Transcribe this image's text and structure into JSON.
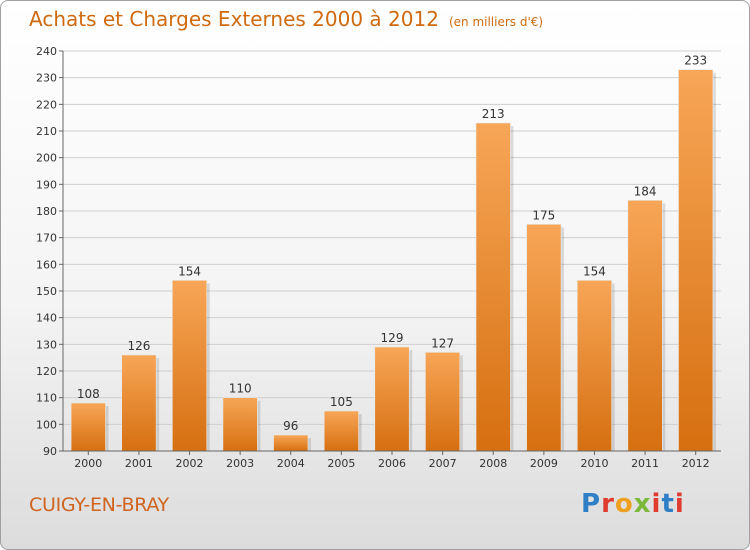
{
  "header": {
    "title": "Achats et Charges Externes 2000 à 2012",
    "unit": "(en milliers d'€)"
  },
  "footer": {
    "place": "CUIGY-EN-BRAY",
    "logo": [
      "P",
      "r",
      "o",
      "x",
      "i",
      "t",
      "i"
    ]
  },
  "colors": {
    "bar_top": "#f7a657",
    "bar_bottom": "#d66f10",
    "title": "#d06a10",
    "logo": [
      "#2f7fc6",
      "#e03b2f",
      "#f0a020",
      "#7cb83a",
      "#e03b2f",
      "#2f7fc6",
      "#e03b2f"
    ]
  },
  "chart_data": {
    "type": "bar",
    "title": "Achats et Charges Externes 2000 à 2012",
    "subtitle": "(en milliers d'€)",
    "xlabel": "",
    "ylabel": "",
    "categories": [
      "2000",
      "2001",
      "2002",
      "2003",
      "2004",
      "2005",
      "2006",
      "2007",
      "2008",
      "2009",
      "2010",
      "2011",
      "2012"
    ],
    "values": [
      108,
      126,
      154,
      110,
      96,
      105,
      129,
      127,
      213,
      175,
      154,
      184,
      233
    ],
    "ylim": [
      90,
      240
    ],
    "yticks": [
      90,
      100,
      110,
      120,
      130,
      140,
      150,
      160,
      170,
      180,
      190,
      200,
      210,
      220,
      230,
      240
    ],
    "grid": true,
    "legend": "none"
  }
}
